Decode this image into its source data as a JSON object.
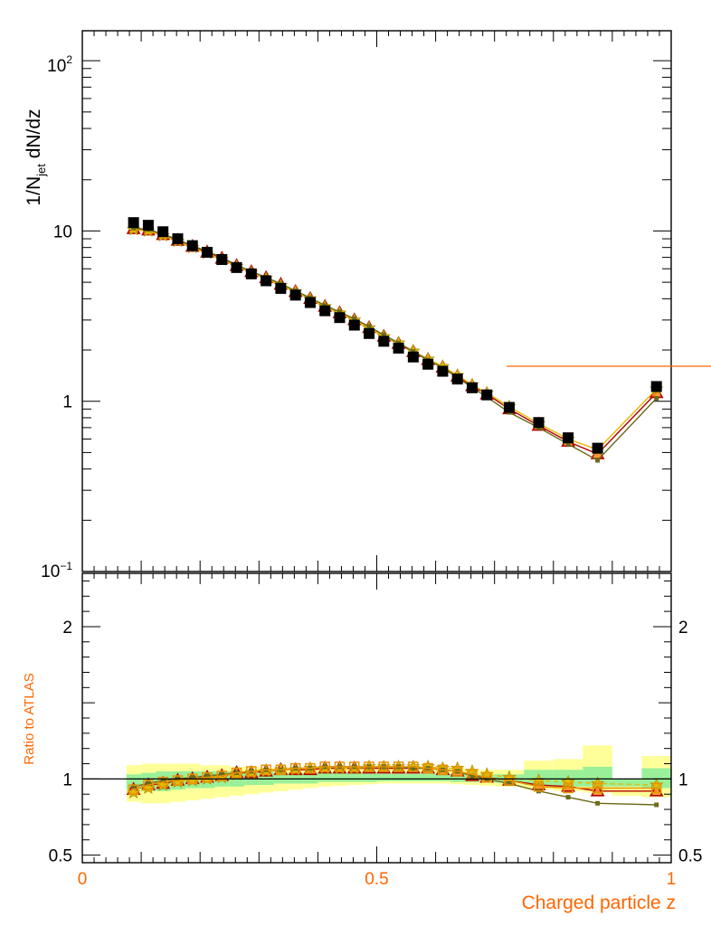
{
  "chart_data": [
    {
      "type": "scatter",
      "panel": "main",
      "ylabel_main": "1/N",
      "ylabel_sub": "jet",
      "ylabel_tail": " dN/dz",
      "yscale": "log",
      "ylim": [
        0.1,
        150
      ],
      "xlim": [
        0,
        1
      ],
      "ytick_labels": {
        "t100": {
          "base": "10",
          "exp": "2"
        },
        "t10": "10",
        "t1": "1",
        "t01": {
          "base": "10",
          "exp": "−1"
        }
      },
      "grid": false,
      "x": [
        0.087,
        0.112,
        0.137,
        0.162,
        0.187,
        0.212,
        0.237,
        0.262,
        0.287,
        0.312,
        0.337,
        0.362,
        0.387,
        0.412,
        0.437,
        0.462,
        0.487,
        0.512,
        0.537,
        0.562,
        0.587,
        0.612,
        0.637,
        0.662,
        0.687,
        0.725,
        0.775,
        0.825,
        0.875,
        0.975
      ],
      "series": [
        {
          "marker": "filled-square",
          "color": "#000000",
          "values": [
            11.2,
            10.8,
            9.9,
            9.0,
            8.2,
            7.5,
            6.8,
            6.1,
            5.6,
            5.1,
            4.6,
            4.2,
            3.8,
            3.4,
            3.1,
            2.8,
            2.5,
            2.25,
            2.05,
            1.82,
            1.65,
            1.5,
            1.35,
            1.2,
            1.09,
            0.92,
            0.75,
            0.61,
            0.53,
            1.22
          ]
        },
        {
          "marker": "triangle",
          "color": "#b30000",
          "fill": "#ff8c1a",
          "values": [
            10.3,
            10.1,
            9.5,
            8.8,
            8.1,
            7.5,
            6.9,
            6.25,
            5.75,
            5.3,
            4.85,
            4.4,
            4.0,
            3.6,
            3.3,
            3.0,
            2.7,
            2.4,
            2.18,
            1.95,
            1.75,
            1.58,
            1.4,
            1.23,
            1.1,
            0.9,
            0.72,
            0.58,
            0.49,
            1.12
          ]
        },
        {
          "marker": "star",
          "color": "#e6b800",
          "values": [
            10.2,
            10.0,
            9.4,
            8.7,
            8.0,
            7.4,
            6.8,
            6.2,
            5.7,
            5.25,
            4.8,
            4.4,
            4.0,
            3.6,
            3.3,
            3.0,
            2.7,
            2.4,
            2.2,
            1.97,
            1.77,
            1.6,
            1.42,
            1.25,
            1.12,
            0.93,
            0.74,
            0.6,
            0.52,
            1.18
          ]
        },
        {
          "marker": "small-square",
          "color": "#6b6b1a",
          "values": [
            10.4,
            10.2,
            9.6,
            8.9,
            8.2,
            7.6,
            7.0,
            6.3,
            5.8,
            5.35,
            4.9,
            4.45,
            4.05,
            3.65,
            3.35,
            3.05,
            2.75,
            2.45,
            2.2,
            1.96,
            1.75,
            1.57,
            1.38,
            1.2,
            1.06,
            0.86,
            0.7,
            0.56,
            0.45,
            1.04
          ]
        }
      ],
      "reference_line_color": "#ff6600"
    },
    {
      "type": "scatter",
      "panel": "ratio",
      "ylabel": "Ratio to ATLAS",
      "xlabel": "Charged particle z",
      "ylim": [
        0.45,
        2.35
      ],
      "xlim": [
        0,
        1
      ],
      "xtick_labels": [
        "0",
        "0.5",
        "1"
      ],
      "xtick_values": [
        0,
        0.5,
        1
      ],
      "ytick_labels": [
        "2",
        "1",
        "0.5"
      ],
      "ytick_values": [
        2,
        1,
        0.5
      ],
      "right_ytick_labels": [
        "2",
        "1",
        "0.5"
      ],
      "reference_value": 1,
      "x": [
        0.087,
        0.112,
        0.137,
        0.162,
        0.187,
        0.212,
        0.237,
        0.262,
        0.287,
        0.312,
        0.337,
        0.362,
        0.387,
        0.412,
        0.437,
        0.462,
        0.487,
        0.512,
        0.537,
        0.562,
        0.587,
        0.612,
        0.637,
        0.662,
        0.687,
        0.725,
        0.775,
        0.825,
        0.875,
        0.975
      ],
      "band_edges": [
        0.075,
        0.1,
        0.125,
        0.15,
        0.175,
        0.2,
        0.225,
        0.25,
        0.275,
        0.3,
        0.325,
        0.35,
        0.375,
        0.4,
        0.425,
        0.45,
        0.475,
        0.5,
        0.525,
        0.55,
        0.575,
        0.6,
        0.625,
        0.65,
        0.675,
        0.7,
        0.75,
        0.8,
        0.85,
        0.9,
        0.95,
        1.0
      ],
      "band_outer": {
        "color": "#ffff99",
        "lo": [
          0.85,
          0.84,
          0.84,
          0.85,
          0.86,
          0.87,
          0.88,
          0.89,
          0.9,
          0.91,
          0.92,
          0.93,
          0.94,
          0.95,
          0.955,
          0.96,
          0.965,
          0.97,
          0.97,
          0.97,
          0.97,
          0.97,
          0.965,
          0.96,
          0.955,
          0.95,
          0.93,
          0.92,
          0.91,
          0.89,
          0.88
        ],
        "hi": [
          1.09,
          1.1,
          1.1,
          1.1,
          1.1,
          1.09,
          1.09,
          1.08,
          1.08,
          1.07,
          1.07,
          1.07,
          1.07,
          1.07,
          1.07,
          1.07,
          1.07,
          1.07,
          1.07,
          1.07,
          1.07,
          1.07,
          1.07,
          1.06,
          1.06,
          1.06,
          1.12,
          1.13,
          1.22,
          1.0,
          1.15
        ]
      },
      "band_inner": {
        "color": "#99f099",
        "lo": [
          0.93,
          0.92,
          0.92,
          0.93,
          0.94,
          0.94,
          0.95,
          0.95,
          0.96,
          0.96,
          0.97,
          0.97,
          0.97,
          0.98,
          0.98,
          0.98,
          0.98,
          0.985,
          0.985,
          0.985,
          0.985,
          0.985,
          0.98,
          0.98,
          0.98,
          0.975,
          0.96,
          0.95,
          0.95,
          0.95,
          0.94
        ],
        "hi": [
          1.03,
          1.04,
          1.05,
          1.05,
          1.05,
          1.05,
          1.05,
          1.05,
          1.05,
          1.05,
          1.04,
          1.04,
          1.04,
          1.04,
          1.04,
          1.04,
          1.04,
          1.035,
          1.035,
          1.035,
          1.035,
          1.035,
          1.035,
          1.03,
          1.03,
          1.03,
          1.06,
          1.06,
          1.08,
          1.0,
          1.07
        ]
      },
      "series": [
        {
          "marker": "triangle",
          "color": "#b30000",
          "fill": "#ff8c1a",
          "dash": "",
          "values": [
            0.93,
            0.96,
            0.97,
            0.99,
            1.0,
            1.01,
            1.02,
            1.04,
            1.04,
            1.05,
            1.06,
            1.06,
            1.06,
            1.07,
            1.07,
            1.07,
            1.07,
            1.07,
            1.07,
            1.07,
            1.07,
            1.06,
            1.05,
            1.02,
            1.01,
            0.99,
            0.96,
            0.95,
            0.92,
            0.92
          ]
        },
        {
          "marker": "star",
          "color": "#e6b800",
          "dash": "5,4",
          "values": [
            0.91,
            0.94,
            0.96,
            0.98,
            0.99,
            1.0,
            1.01,
            1.03,
            1.04,
            1.05,
            1.06,
            1.06,
            1.07,
            1.07,
            1.07,
            1.07,
            1.08,
            1.08,
            1.08,
            1.08,
            1.08,
            1.07,
            1.07,
            1.05,
            1.03,
            1.01,
            0.99,
            0.98,
            0.97,
            0.96
          ]
        },
        {
          "marker": "small-square",
          "color": "#6b6b1a",
          "dash": "",
          "values": [
            0.95,
            0.97,
            0.99,
            1.0,
            1.01,
            1.02,
            1.03,
            1.04,
            1.05,
            1.06,
            1.06,
            1.07,
            1.07,
            1.08,
            1.08,
            1.08,
            1.08,
            1.08,
            1.08,
            1.07,
            1.07,
            1.06,
            1.05,
            1.02,
            1.0,
            0.97,
            0.92,
            0.88,
            0.84,
            0.83
          ]
        },
        {
          "marker": "open-square",
          "color": "#e69500",
          "dash": "",
          "values": [
            0.93,
            0.96,
            0.98,
            0.99,
            1.0,
            1.01,
            1.02,
            1.04,
            1.05,
            1.06,
            1.06,
            1.07,
            1.07,
            1.08,
            1.08,
            1.08,
            1.08,
            1.08,
            1.08,
            1.08,
            1.07,
            1.06,
            1.05,
            1.03,
            1.01,
            0.99,
            0.95,
            0.94,
            0.94,
            0.94
          ]
        }
      ]
    }
  ]
}
